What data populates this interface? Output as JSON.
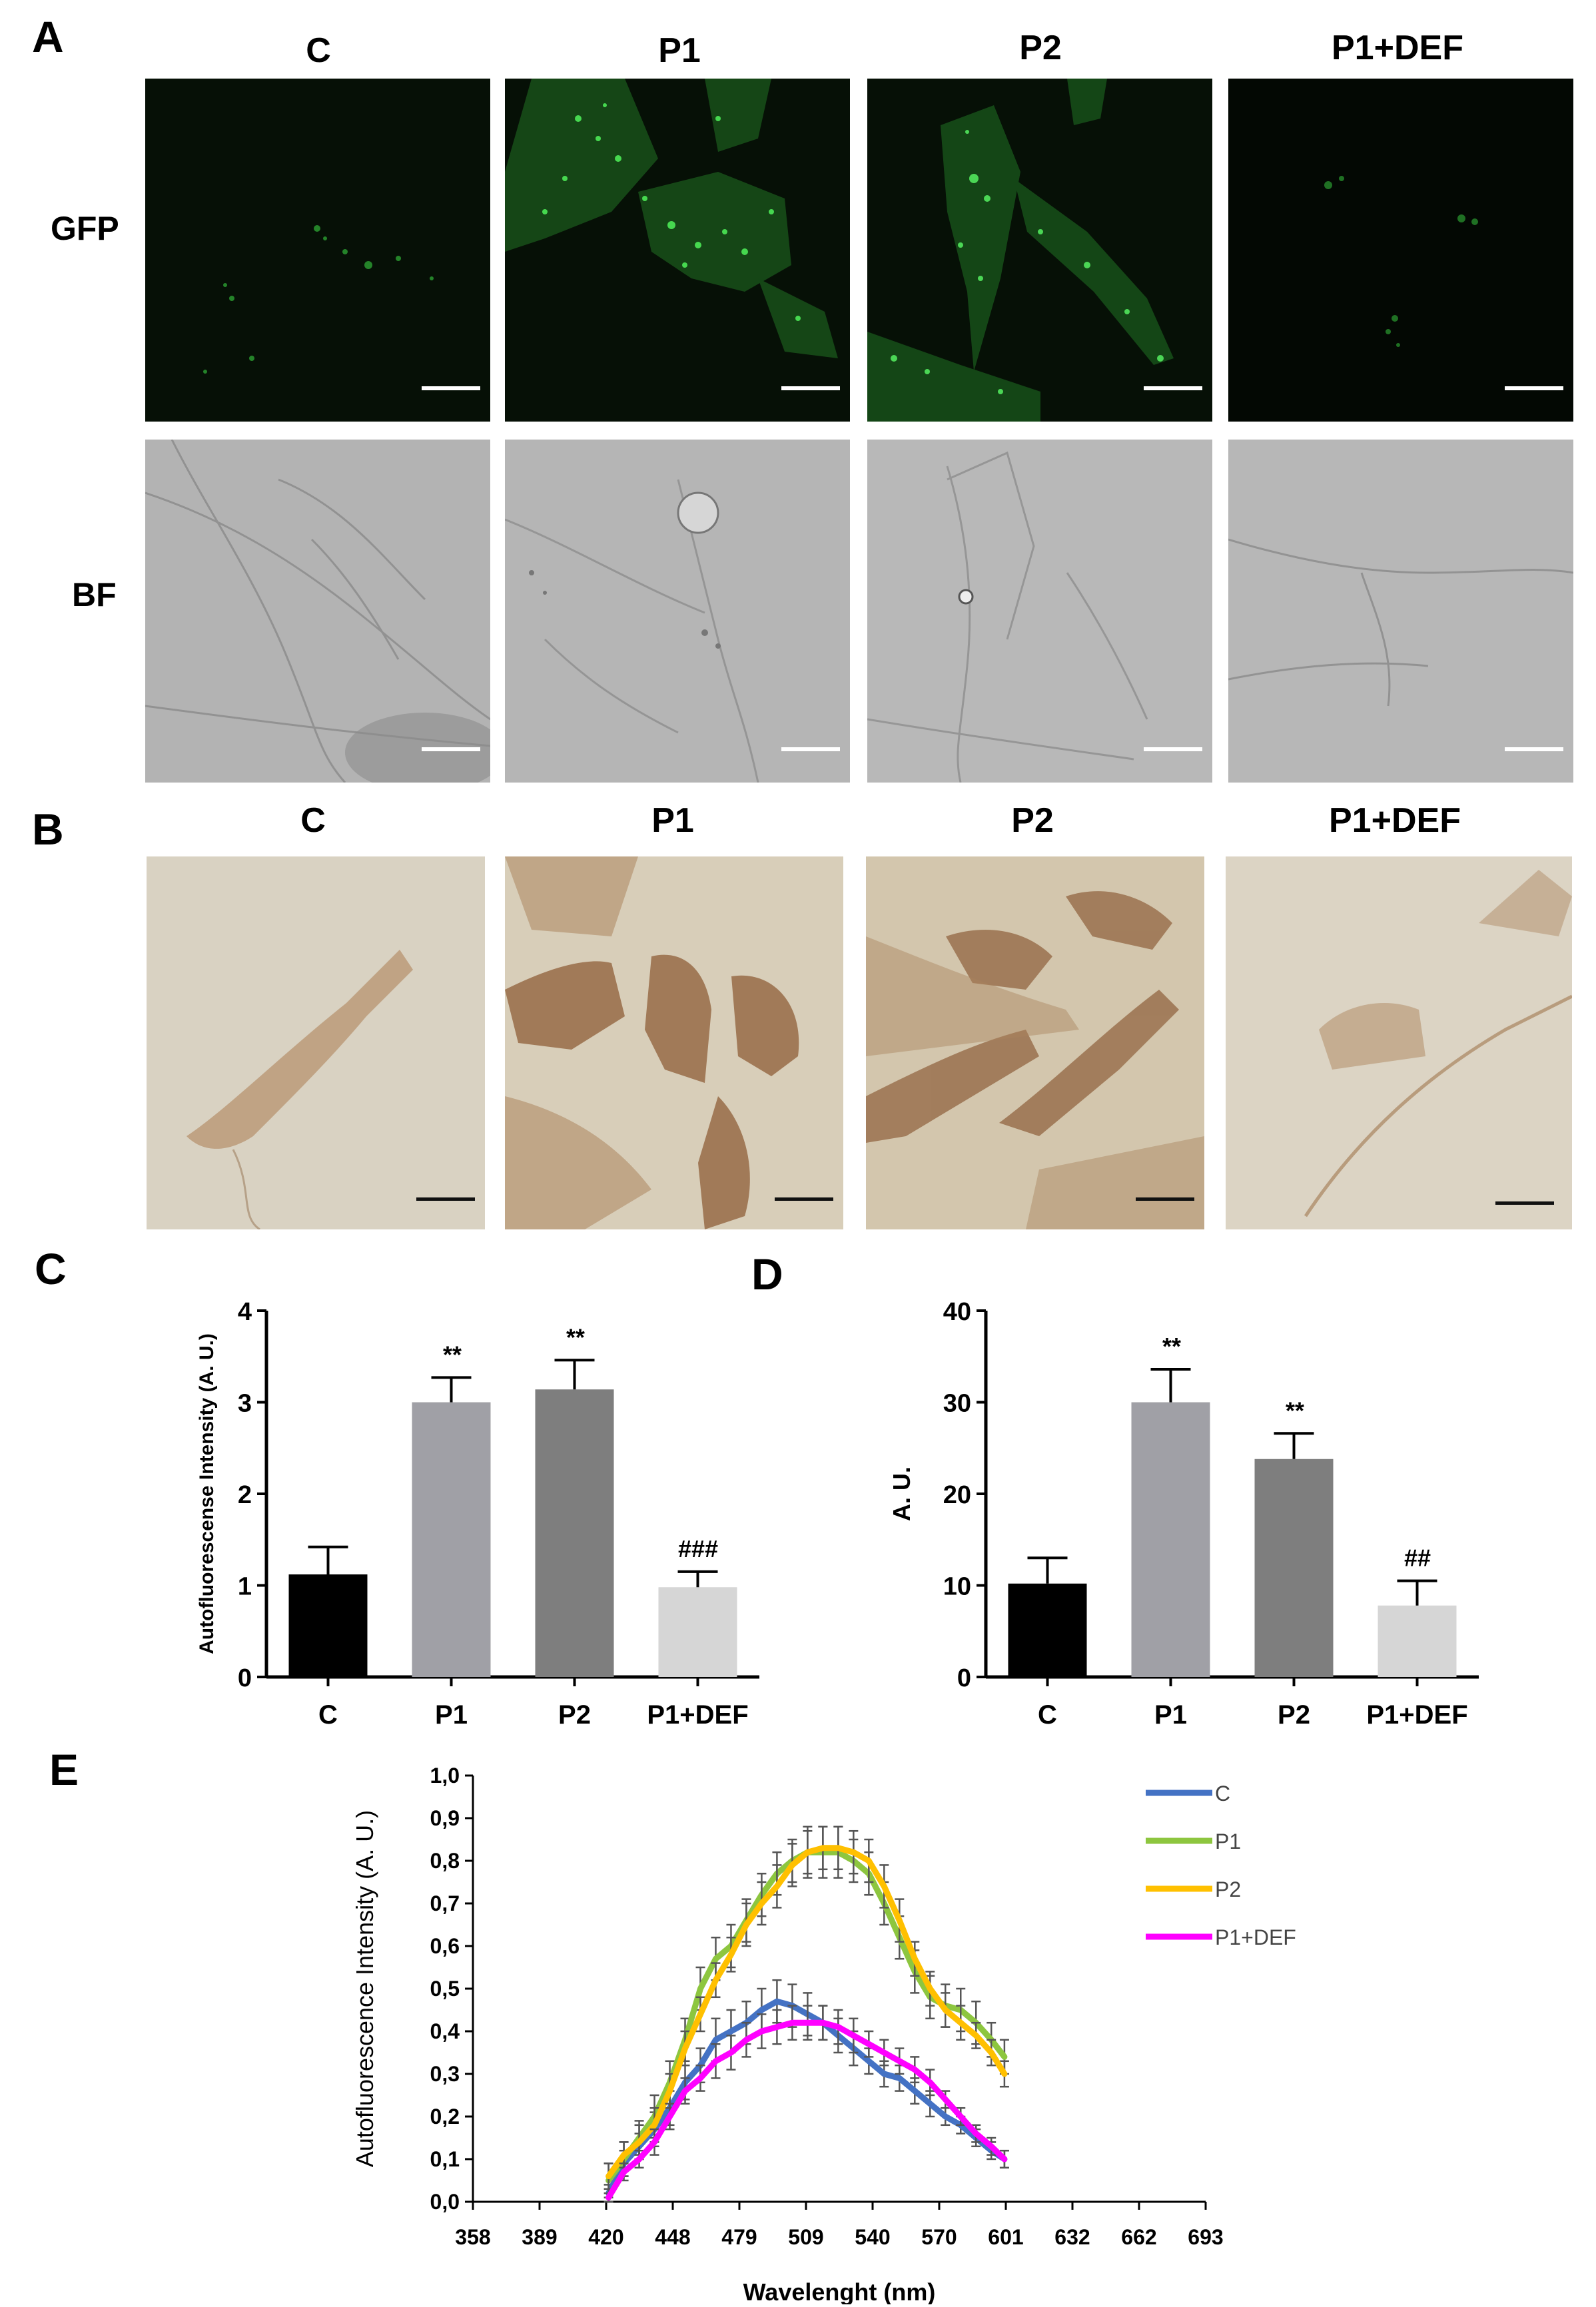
{
  "figure": {
    "panel_letters": [
      "A",
      "B",
      "C",
      "D",
      "E"
    ],
    "panelA": {
      "columns": [
        "C",
        "P1",
        "P2",
        "P1+DEF"
      ],
      "rows": [
        "GFP",
        "BF"
      ]
    },
    "panelB": {
      "columns": [
        "C",
        "P1",
        "P2",
        "P1+DEF"
      ]
    }
  },
  "colors": {
    "gfp_background": "#061006",
    "gfp_signal": "#39d43f",
    "bf_gray": "#a9a9a9",
    "stain_background": "#d8d0bf",
    "stain_brown": "#a77a52",
    "bar_C": "#000000",
    "bar_P1": "#a0a0a6",
    "bar_P2": "#7e7e7e",
    "bar_P1DEF": "#d6d6d6",
    "line_C": "#4472c4",
    "line_P1": "#8dc63f",
    "line_P2": "#ffc000",
    "line_P1DEF": "#ff00ff"
  },
  "chart_data": [
    {
      "panel": "C",
      "type": "bar",
      "categories": [
        "C",
        "P1",
        "P2",
        "P1+DEF"
      ],
      "values": [
        1.12,
        3.0,
        3.14,
        0.98
      ],
      "errors": [
        0.3,
        0.27,
        0.32,
        0.17
      ],
      "annotations": [
        "",
        "**",
        "**",
        "###"
      ],
      "ylabel": "Autofluorescense Intensity (A. U.)",
      "xlabel": "",
      "ylim": [
        0,
        4
      ],
      "yticks": [
        "0",
        "1",
        "2",
        "3",
        "4"
      ]
    },
    {
      "panel": "D",
      "type": "bar",
      "categories": [
        "C",
        "P1",
        "P2",
        "P1+DEF"
      ],
      "values": [
        10.2,
        30.0,
        23.8,
        7.8
      ],
      "errors": [
        2.8,
        3.6,
        2.8,
        2.7
      ],
      "annotations": [
        "",
        "**",
        "**",
        "##"
      ],
      "ylabel": "A. U.",
      "xlabel": "",
      "ylim": [
        0,
        40
      ],
      "yticks": [
        "0",
        "10",
        "20",
        "30",
        "40"
      ]
    },
    {
      "panel": "E",
      "type": "line",
      "xlabel": "Wavelenght (nm)",
      "ylabel": "Autofluorescence Intensity (A. U.)",
      "xlim": [
        358,
        693
      ],
      "ylim": [
        0,
        1.0
      ],
      "xticks": [
        "358",
        "389",
        "420",
        "448",
        "479",
        "509",
        "540",
        "570",
        "601",
        "632",
        "662",
        "693"
      ],
      "yticks": [
        "0,0",
        "0,1",
        "0,2",
        "0,3",
        "0,4",
        "0,5",
        "0,6",
        "0,7",
        "0,8",
        "0,9",
        "1,0"
      ],
      "x": [
        420,
        427,
        434,
        441,
        448,
        455,
        462,
        469,
        476,
        483,
        490,
        497,
        504,
        511,
        518,
        525,
        532,
        539,
        546,
        553,
        560,
        567,
        574,
        581,
        588,
        595,
        601
      ],
      "legend_position": "right",
      "series": [
        {
          "name": "C",
          "values": [
            0.02,
            0.09,
            0.13,
            0.17,
            0.22,
            0.28,
            0.32,
            0.38,
            0.4,
            0.42,
            0.45,
            0.47,
            0.46,
            0.44,
            0.42,
            0.39,
            0.36,
            0.33,
            0.3,
            0.29,
            0.26,
            0.23,
            0.2,
            0.18,
            0.15,
            0.12,
            0.1
          ],
          "errors": [
            0.02,
            0.03,
            0.03,
            0.04,
            0.04,
            0.04,
            0.04,
            0.05,
            0.05,
            0.05,
            0.05,
            0.05,
            0.05,
            0.05,
            0.04,
            0.04,
            0.04,
            0.03,
            0.03,
            0.03,
            0.03,
            0.03,
            0.02,
            0.02,
            0.02,
            0.02,
            0.02
          ]
        },
        {
          "name": "P1",
          "values": [
            0.05,
            0.1,
            0.15,
            0.2,
            0.28,
            0.38,
            0.5,
            0.57,
            0.6,
            0.66,
            0.72,
            0.77,
            0.8,
            0.82,
            0.82,
            0.82,
            0.8,
            0.77,
            0.7,
            0.62,
            0.54,
            0.48,
            0.46,
            0.45,
            0.42,
            0.38,
            0.34
          ],
          "errors": [
            0.04,
            0.04,
            0.04,
            0.05,
            0.05,
            0.05,
            0.05,
            0.05,
            0.05,
            0.05,
            0.05,
            0.05,
            0.05,
            0.06,
            0.06,
            0.06,
            0.05,
            0.05,
            0.05,
            0.05,
            0.05,
            0.05,
            0.05,
            0.05,
            0.05,
            0.04,
            0.04
          ]
        },
        {
          "name": "P2",
          "values": [
            0.06,
            0.11,
            0.14,
            0.18,
            0.26,
            0.36,
            0.44,
            0.52,
            0.58,
            0.65,
            0.7,
            0.74,
            0.79,
            0.82,
            0.83,
            0.83,
            0.82,
            0.8,
            0.74,
            0.66,
            0.57,
            0.5,
            0.45,
            0.42,
            0.39,
            0.35,
            0.3
          ],
          "errors": [
            0.03,
            0.03,
            0.04,
            0.04,
            0.04,
            0.04,
            0.04,
            0.04,
            0.04,
            0.05,
            0.05,
            0.05,
            0.05,
            0.05,
            0.05,
            0.05,
            0.05,
            0.05,
            0.05,
            0.05,
            0.04,
            0.04,
            0.04,
            0.04,
            0.03,
            0.03,
            0.03
          ]
        },
        {
          "name": "P1+DEF",
          "values": [
            0.01,
            0.07,
            0.1,
            0.14,
            0.2,
            0.26,
            0.29,
            0.33,
            0.35,
            0.38,
            0.4,
            0.41,
            0.42,
            0.42,
            0.42,
            0.41,
            0.39,
            0.37,
            0.35,
            0.33,
            0.31,
            0.28,
            0.24,
            0.2,
            0.16,
            0.13,
            0.1
          ],
          "errors": [
            0.01,
            0.02,
            0.02,
            0.03,
            0.03,
            0.03,
            0.03,
            0.04,
            0.04,
            0.04,
            0.04,
            0.04,
            0.04,
            0.04,
            0.04,
            0.04,
            0.04,
            0.03,
            0.03,
            0.03,
            0.03,
            0.03,
            0.02,
            0.02,
            0.02,
            0.02,
            0.02
          ]
        }
      ]
    }
  ]
}
